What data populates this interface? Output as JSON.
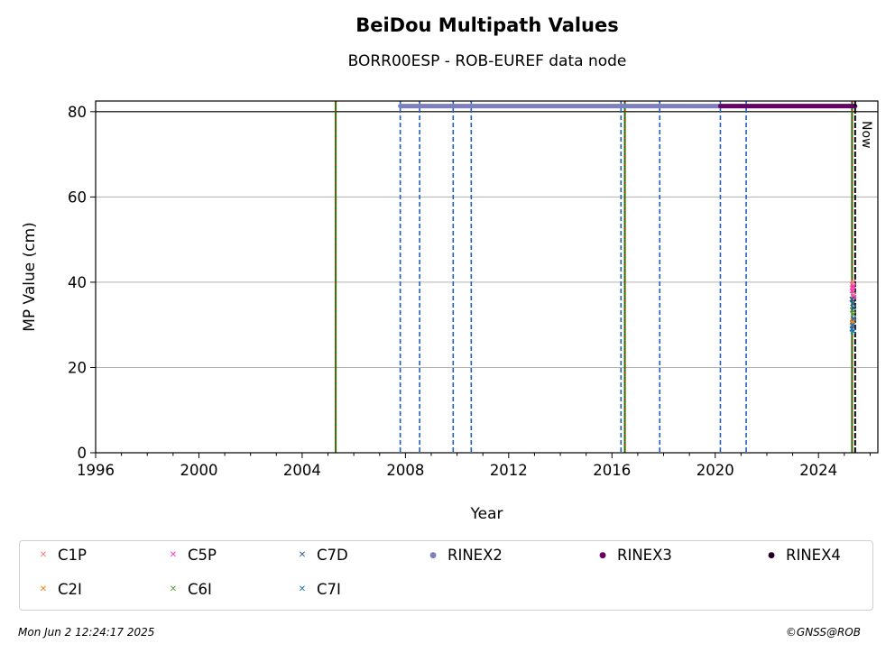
{
  "chart_data": {
    "type": "scatter",
    "title": "BeiDou Multipath Values",
    "subtitle": "BORR00ESP - ROB-EUREF data node",
    "xlabel": "Year",
    "ylabel": "MP Value (cm)",
    "xlim": [
      1996,
      2026.3
    ],
    "ylim": [
      0,
      82.5
    ],
    "x_ticks": [
      1996,
      2000,
      2004,
      2008,
      2012,
      2016,
      2020,
      2024
    ],
    "y_ticks": [
      0,
      20,
      40,
      60,
      80
    ],
    "grid": "horizontal",
    "reference_line_y": 80,
    "now_label": "Now",
    "now_x": 2025.42,
    "green_lines": [
      2005.3,
      2016.5,
      2025.3
    ],
    "red_dashed_lines": [
      2005.3,
      2016.5,
      2025.3
    ],
    "blue_dashed_lines": [
      2007.8,
      2008.55,
      2009.85,
      2010.55,
      2016.35,
      2017.85,
      2020.2,
      2021.2
    ],
    "rinex_bars": [
      {
        "name": "RINEX2",
        "color": "#7f7fbf",
        "y": 81.3,
        "x_start": 2007.8,
        "x_end": 2020.2
      },
      {
        "name": "RINEX3",
        "color": "#660066",
        "y": 81.3,
        "x_start": 2020.2,
        "x_end": 2025.42
      }
    ],
    "series": [
      {
        "name": "C1P",
        "color": "#f08080",
        "marker": "x",
        "x": [
          2025.3,
          2025.32,
          2025.34,
          2025.36
        ],
        "y": [
          39.5,
          38.5,
          40.0,
          37.0
        ]
      },
      {
        "name": "C2I",
        "color": "#ff7f0e",
        "marker": "x",
        "x": [
          2025.3,
          2025.33
        ],
        "y": [
          30.5,
          31.0
        ]
      },
      {
        "name": "C5P",
        "color": "#ff33cc",
        "marker": "x",
        "x": [
          2025.31,
          2025.35,
          2025.37
        ],
        "y": [
          38.0,
          39.0,
          36.5
        ]
      },
      {
        "name": "C6I",
        "color": "#5a9a3a",
        "marker": "x",
        "x": [
          2025.31,
          2025.35
        ],
        "y": [
          33.5,
          32.5
        ]
      },
      {
        "name": "C7D",
        "color": "#2a5d8f",
        "marker": "x",
        "x": [
          2025.3,
          2025.33,
          2025.36
        ],
        "y": [
          36.0,
          35.0,
          34.0
        ]
      },
      {
        "name": "C7I",
        "color": "#1f77b4",
        "marker": "x",
        "x": [
          2025.3,
          2025.32,
          2025.34,
          2025.36
        ],
        "y": [
          29.0,
          30.0,
          28.5,
          31.5
        ]
      },
      {
        "name": "RINEX2",
        "color": "#7f7fbf",
        "marker": "o",
        "x": [],
        "y": []
      },
      {
        "name": "RINEX3",
        "color": "#660066",
        "marker": "o",
        "x": [],
        "y": []
      },
      {
        "name": "RINEX4",
        "color": "#220022",
        "marker": "o",
        "x": [],
        "y": []
      }
    ]
  },
  "legend": {
    "items": [
      {
        "label": "C1P",
        "color": "#f08080",
        "marker": "x"
      },
      {
        "label": "C5P",
        "color": "#ff33cc",
        "marker": "x"
      },
      {
        "label": "C7D",
        "color": "#2a5d8f",
        "marker": "x"
      },
      {
        "label": "RINEX2",
        "color": "#7f7fbf",
        "marker": "o"
      },
      {
        "label": "RINEX3",
        "color": "#660066",
        "marker": "o"
      },
      {
        "label": "RINEX4",
        "color": "#220022",
        "marker": "o"
      },
      {
        "label": "C2I",
        "color": "#ff7f0e",
        "marker": "x"
      },
      {
        "label": "C6I",
        "color": "#5a9a3a",
        "marker": "x"
      },
      {
        "label": "C7I",
        "color": "#1f77b4",
        "marker": "x"
      }
    ]
  },
  "footer": {
    "timestamp": "Mon Jun  2 12:24:17 2025",
    "credit": "©GNSS@ROB"
  }
}
